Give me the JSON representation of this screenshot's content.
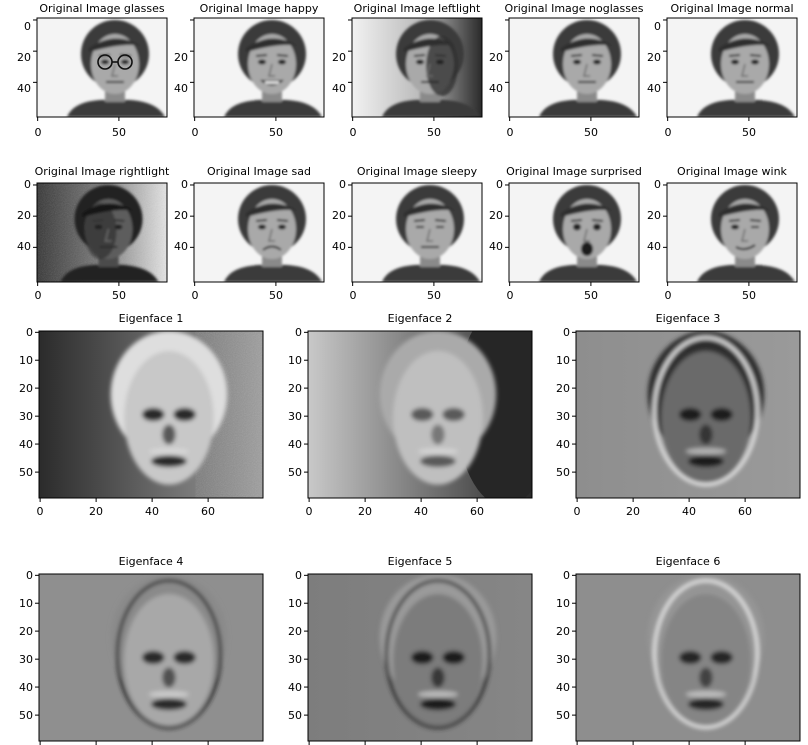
{
  "originals": {
    "titles": [
      "Original Image glasses",
      "Original Image happy",
      "Original Image leftlight",
      "Original Image noglasses",
      "Original Image normal",
      "Original Image rightlight",
      "Original Image sad",
      "Original Image sleepy",
      "Original Image surprised",
      "Original Image wink"
    ],
    "yticks": [
      "0",
      "20",
      "40"
    ],
    "xticks": [
      "0",
      "50"
    ],
    "variant": [
      "glasses",
      "happy",
      "leftlight",
      "noglasses",
      "normal",
      "rightlight",
      "sad",
      "sleepy",
      "surprised",
      "wink"
    ]
  },
  "eigenfaces": {
    "titles": [
      "Eigenface 1",
      "Eigenface 2",
      "Eigenface 3",
      "Eigenface 4",
      "Eigenface 5",
      "Eigenface 6"
    ],
    "yticks": [
      "0",
      "10",
      "20",
      "30",
      "40",
      "50"
    ],
    "xticks": [
      "0",
      "20",
      "40",
      "60"
    ]
  },
  "colors": {
    "background": "#ffffff",
    "axis": "#000000"
  }
}
